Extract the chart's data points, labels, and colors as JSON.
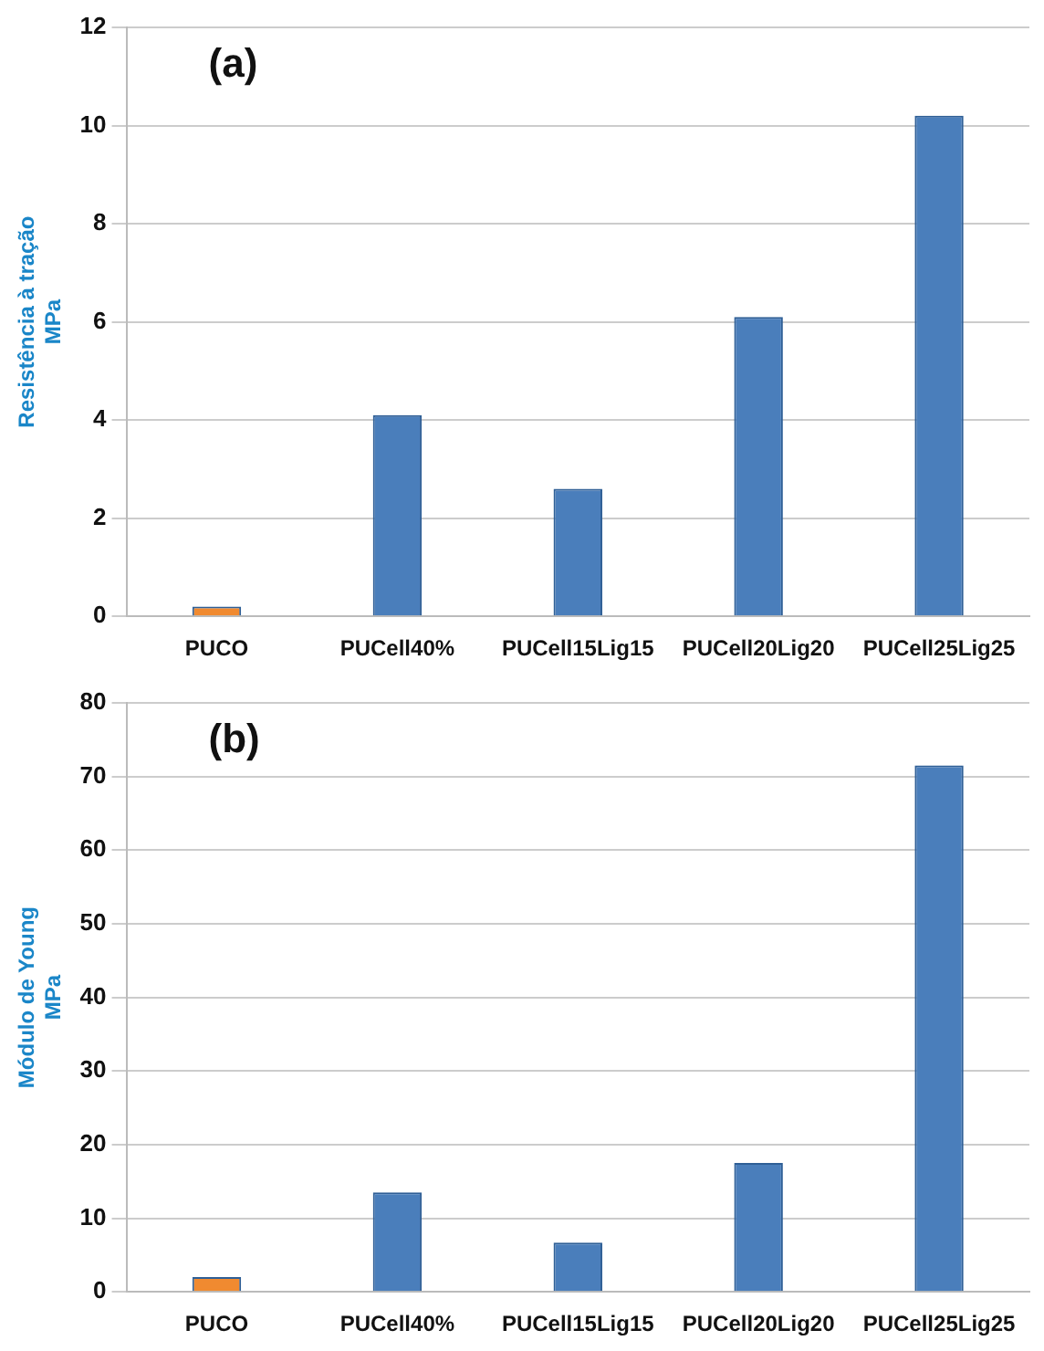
{
  "chart_data": [
    {
      "type": "bar",
      "title": "(a)",
      "ylabel": "Resistência à tração\nMPa",
      "categories": [
        "PUCO",
        "PUCell40%",
        "PUCell15Lig15",
        "PUCell20Lig20",
        "PUCell25Lig25"
      ],
      "values": [
        0.2,
        4.1,
        2.6,
        6.1,
        10.2
      ],
      "colors": [
        "#f08a30",
        "#4a7ebb",
        "#4a7ebb",
        "#4a7ebb",
        "#4a7ebb"
      ],
      "ylim": [
        0,
        12
      ],
      "yticks": [
        0,
        2,
        4,
        6,
        8,
        10,
        12
      ],
      "grid": "y"
    },
    {
      "type": "bar",
      "title": "(b)",
      "ylabel": "Módulo de Young\nMPa",
      "categories": [
        "PUCO",
        "PUCell40%",
        "PUCell15Lig15",
        "PUCell20Lig20",
        "PUCell25Lig25"
      ],
      "values": [
        2,
        13.5,
        6.7,
        17.5,
        71.5
      ],
      "colors": [
        "#f08a30",
        "#4a7ebb",
        "#4a7ebb",
        "#4a7ebb",
        "#4a7ebb"
      ],
      "ylim": [
        0,
        80
      ],
      "yticks": [
        0,
        10,
        20,
        30,
        40,
        50,
        60,
        70,
        80
      ],
      "grid": "y"
    }
  ]
}
